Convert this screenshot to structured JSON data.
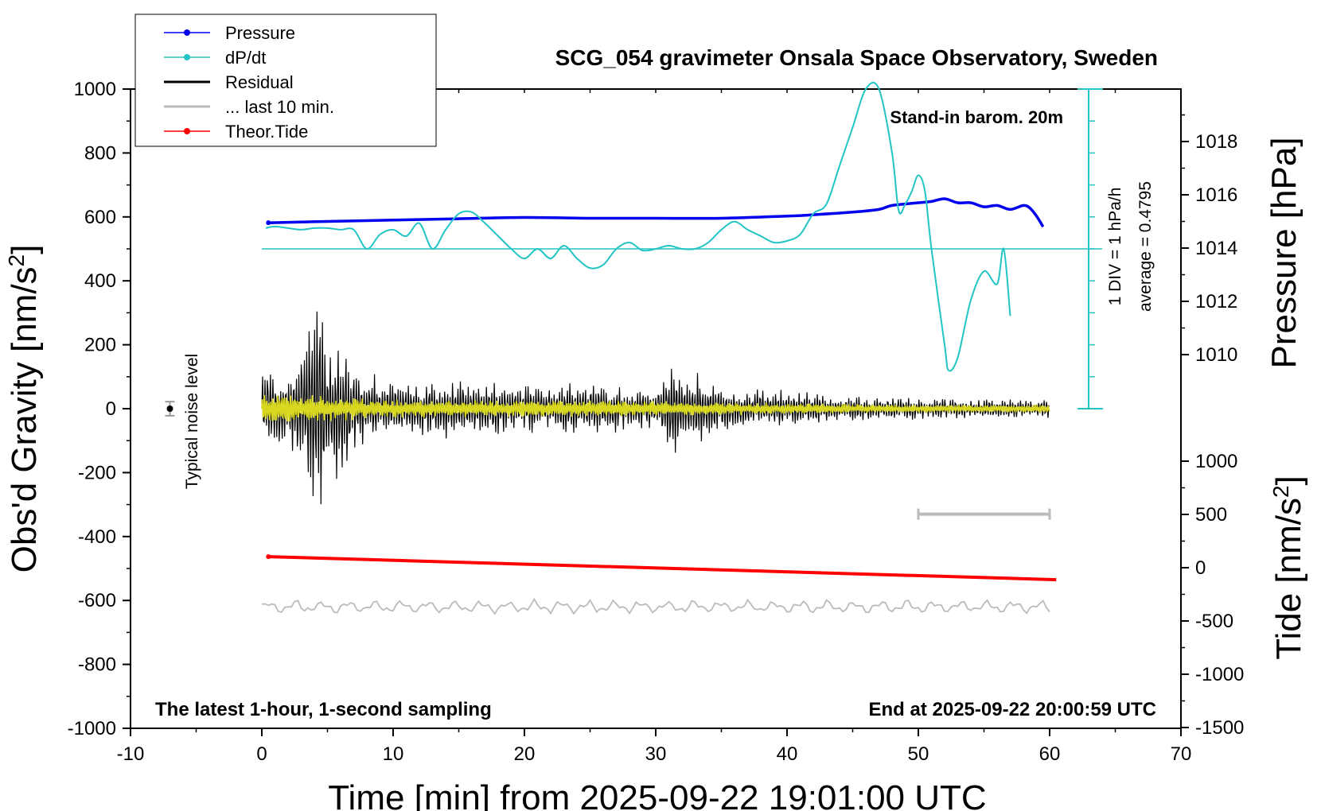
{
  "chart_data": {
    "type": "line",
    "title": "SCG_054 gravimeter Onsala Space Observatory, Sweden",
    "xlabel": "Time [min] from 2025-09-22 19:01:00 UTC",
    "ylabel_left": "Obs'd Gravity [nm/s²]",
    "ylabel_right_upper": "Pressure [hPa]",
    "ylabel_right_lower": "Tide [nm/s²]",
    "xlim": [
      -10,
      70
    ],
    "ylim_left": [
      -1000,
      1000
    ],
    "x_ticks": [
      "-10",
      "0",
      "10",
      "20",
      "30",
      "40",
      "50",
      "60",
      "70"
    ],
    "y_left_ticks": [
      "1000",
      "800",
      "600",
      "400",
      "200",
      "0",
      "-200",
      "-400",
      "-600",
      "-800",
      "-1000"
    ],
    "pressure_ticks": [
      "1018",
      "1016",
      "1014",
      "1012",
      "1010"
    ],
    "tide_ticks": [
      "1000",
      "500",
      "0",
      "-500",
      "-1000",
      "-1500"
    ],
    "grid": false,
    "legend_position": "top-left",
    "legend": [
      {
        "name": "Pressure",
        "color": "#0000ee",
        "marker": true
      },
      {
        "name": "dP/dt",
        "color": "#22c4c4",
        "marker": true
      },
      {
        "name": "Residual",
        "color": "#000000",
        "marker": false
      },
      {
        "name": "... last 10 min.",
        "color": "#bbbbbb",
        "marker": false
      },
      {
        "name": "Theor.Tide",
        "color": "#ff0000",
        "marker": true
      }
    ],
    "annotations": {
      "stand_in": "Stand-in barom. 20m",
      "div_note": "1 DIV = 1 hPa/h",
      "average": "average = 0.4795",
      "noise": "Typical noise level",
      "latest": "The latest 1-hour, 1-second sampling",
      "end": "End at 2025-09-22 20:00:59 UTC"
    },
    "series": [
      {
        "name": "Pressure",
        "color": "#0000ee",
        "axis": "pressure_hPa",
        "x": [
          0.5,
          5,
          10,
          15,
          20,
          25,
          30,
          35,
          40,
          42,
          45,
          47,
          48,
          50,
          51,
          52,
          53,
          54,
          55,
          56,
          57,
          58,
          58.5,
          59,
          59.5
        ],
        "y": [
          1014.95,
          1015.0,
          1015.05,
          1015.1,
          1015.15,
          1015.12,
          1015.12,
          1015.12,
          1015.2,
          1015.25,
          1015.35,
          1015.45,
          1015.6,
          1015.7,
          1015.75,
          1015.85,
          1015.7,
          1015.7,
          1015.55,
          1015.6,
          1015.45,
          1015.6,
          1015.5,
          1015.2,
          1014.8
        ]
      },
      {
        "name": "dP/dt",
        "color": "#22c4c4",
        "axis": "gravity_scale",
        "x": [
          0.3,
          1,
          2,
          3,
          4,
          5,
          6,
          7,
          8,
          9,
          10,
          11,
          12,
          13,
          14,
          15,
          16,
          17,
          18,
          19,
          20,
          21,
          22,
          23,
          24,
          25,
          26,
          27,
          28,
          29,
          30,
          31,
          32,
          33,
          34,
          35,
          36,
          37,
          38,
          39,
          40,
          41,
          42,
          43,
          44,
          45,
          46,
          47,
          48,
          48.5,
          49,
          49.5,
          50,
          50.5,
          51,
          52,
          52.3,
          53,
          54,
          55,
          56,
          56.5,
          57
        ],
        "y": [
          565,
          570,
          565,
          560,
          565,
          565,
          560,
          560,
          500,
          545,
          560,
          540,
          580,
          500,
          560,
          610,
          615,
          580,
          540,
          500,
          470,
          500,
          470,
          510,
          470,
          440,
          450,
          500,
          520,
          495,
          500,
          510,
          500,
          500,
          520,
          560,
          585,
          560,
          540,
          520,
          525,
          545,
          610,
          640,
          760,
          880,
          1000,
          1050,
          800,
          620,
          640,
          680,
          730,
          680,
          500,
          200,
          120,
          160,
          340,
          430,
          390,
          500,
          290
        ]
      },
      {
        "name": "Residual",
        "color": "#000000",
        "axis": "gravity",
        "x": [
          0,
          2,
          3.5,
          4.2,
          5,
          6.5,
          7,
          10,
          14,
          20,
          25,
          30,
          31.5,
          35,
          40,
          45,
          50,
          55,
          60
        ],
        "amplitude": [
          150,
          120,
          300,
          420,
          200,
          250,
          150,
          80,
          100,
          80,
          90,
          60,
          160,
          70,
          60,
          40,
          35,
          30,
          30
        ]
      },
      {
        "name": "Yellow overlay",
        "color": "#d8d820",
        "axis": "gravity",
        "x": [
          0,
          10,
          20,
          30,
          40,
          50,
          60
        ],
        "amplitude": [
          55,
          30,
          28,
          25,
          18,
          12,
          12
        ]
      },
      {
        "name": "... last 10 min.",
        "color": "#bbbbbb",
        "axis": "gravity",
        "x": [
          0,
          60
        ],
        "baseline": [
          -620,
          -620
        ],
        "amplitude": [
          25,
          25
        ]
      },
      {
        "name": "Theor.Tide",
        "color": "#ff0000",
        "axis": "gravity",
        "x": [
          0.5,
          60.5
        ],
        "y": [
          -463,
          -535
        ]
      }
    ],
    "noise_marker": {
      "x": -7,
      "y": 0,
      "err": 22
    },
    "noise_bar": {
      "x": [
        50,
        60
      ],
      "y": -330
    }
  }
}
